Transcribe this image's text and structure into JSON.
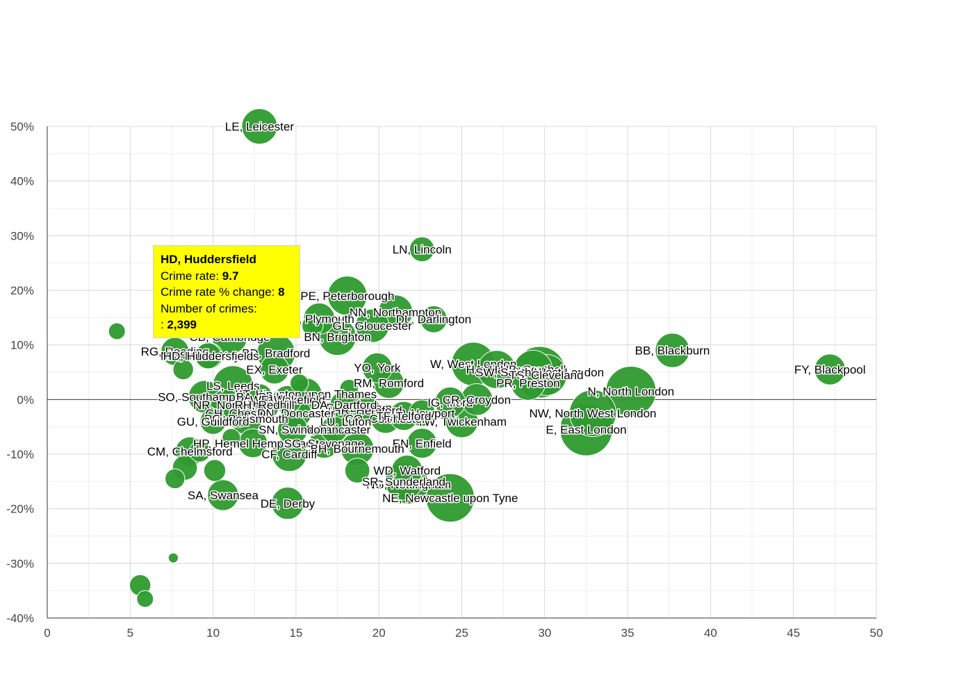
{
  "colors": {
    "bubble": "#2e9a2e",
    "bubble_stroke": "#ffffff",
    "grid": "#d8d8d8",
    "minor_grid": "#eeeeee",
    "axis": "#333333",
    "zero_line": "#333333",
    "tooltip_bg": "#ffff00"
  },
  "tooltip": {
    "title": "HD, Huddersfield",
    "rate_label": "Crime rate: ",
    "rate_value": "9.7",
    "change_label": "Crime rate % change: ",
    "change_value": "8",
    "count_label": "Number of crimes:",
    "count_prefix": ": ",
    "count_value": "2,399"
  },
  "chart_data": {
    "type": "scatter",
    "subtype": "bubble",
    "xlim": [
      0,
      50
    ],
    "ylim": [
      -40,
      50
    ],
    "x_ticks": [
      "0",
      "5",
      "10",
      "15",
      "20",
      "25",
      "30",
      "35",
      "40",
      "45",
      "50"
    ],
    "y_ticks": [
      "50%",
      "40%",
      "30%",
      "20%",
      "10%",
      "0%",
      "-10%",
      "-20%",
      "-30%",
      "-40%"
    ],
    "grid": true,
    "points": [
      {
        "name": "LE, Leicester",
        "x": 12.8,
        "y": 50,
        "size": 4500
      },
      {
        "name": "LN, Lincoln",
        "x": 22.6,
        "y": 27.5,
        "size": 2200
      },
      {
        "name": "PE, Peterborough",
        "x": 18.1,
        "y": 19,
        "size": 5500
      },
      {
        "name": "NN, Northampton",
        "x": 21.0,
        "y": 16,
        "size": 4200
      },
      {
        "name": "DL, Darlington",
        "x": 23.3,
        "y": 14.7,
        "size": 2600
      },
      {
        "name": "PL, Plymouth",
        "x": 16.4,
        "y": 14.8,
        "size": 3500
      },
      {
        "name": "GL, Gloucester",
        "x": 19.6,
        "y": 13.5,
        "size": 4000
      },
      {
        "name": "BN, Brighton",
        "x": 17.5,
        "y": 11.5,
        "size": 5000
      },
      {
        "name": "CB, Cambridge",
        "x": 11.0,
        "y": 11.5,
        "size": 4500
      },
      {
        "name": "RG, Reading",
        "x": 7.7,
        "y": 8.8,
        "size": 2800
      },
      {
        "name": "BD, Bradford",
        "x": 13.8,
        "y": 8.5,
        "size": 5200
      },
      {
        "name": "MK, Milton Keynes",
        "x": 9.8,
        "y": 8.0,
        "size": 2400
      },
      {
        "name": "HD, Huddersfield",
        "x": 9.7,
        "y": 8,
        "size": 2399
      },
      {
        "name": "EX, Exeter",
        "x": 13.7,
        "y": 5.5,
        "size": 3000
      },
      {
        "name": "YO, York",
        "x": 19.9,
        "y": 5.8,
        "size": 3200
      },
      {
        "name": "W, West London",
        "x": 25.7,
        "y": 6.5,
        "size": 6800
      },
      {
        "name": "HA, Harrow",
        "x": 27.1,
        "y": 5.5,
        "size": 5200
      },
      {
        "name": "UB, Southall",
        "x": 29.3,
        "y": 5.5,
        "size": 5300
      },
      {
        "name": "SW, South West London",
        "x": 29.7,
        "y": 5.0,
        "size": 9500
      },
      {
        "name": "TS, Cleveland",
        "x": 30.1,
        "y": 4.5,
        "size": 6000
      },
      {
        "name": "PR, Preston",
        "x": 29.0,
        "y": 3.0,
        "size": 4200
      },
      {
        "name": "RM, Romford",
        "x": 20.6,
        "y": 3.0,
        "size": 3300
      },
      {
        "name": "LS, Leeds",
        "x": 11.2,
        "y": 2.5,
        "size": 5800
      },
      {
        "name": "KT, Kingston upon Thames",
        "x": 15.6,
        "y": 1.0,
        "size": 3600
      },
      {
        "name": "SO, Southampton",
        "x": 9.5,
        "y": 0.5,
        "size": 3800
      },
      {
        "name": "BA, Bath",
        "x": 12.8,
        "y": 0.5,
        "size": 2400
      },
      {
        "name": "WF, Wakefield",
        "x": 14.5,
        "y": 0,
        "size": 2800
      },
      {
        "name": "IG, Ilford",
        "x": 24.3,
        "y": -0.5,
        "size": 3300
      },
      {
        "name": "CR, Croydon",
        "x": 25.9,
        "y": 0,
        "size": 3600
      },
      {
        "name": "BB, Blackburn",
        "x": 37.7,
        "y": 9,
        "size": 4200
      },
      {
        "name": "FY, Blackpool",
        "x": 47.2,
        "y": 5.5,
        "size": 3400
      },
      {
        "name": "N, North London",
        "x": 35.2,
        "y": 1.5,
        "size": 9000
      },
      {
        "name": "NW, North West London",
        "x": 32.9,
        "y": -2.5,
        "size": 7800
      },
      {
        "name": "E, East London",
        "x": 32.5,
        "y": -5.5,
        "size": 9800
      },
      {
        "name": "TW, Twickenham",
        "x": 25.0,
        "y": -4.0,
        "size": 3800
      },
      {
        "name": "NP, Newport",
        "x": 22.6,
        "y": -2.5,
        "size": 2500
      },
      {
        "name": "DH, Durham",
        "x": 18.8,
        "y": -1.5,
        "size": 2800
      },
      {
        "name": "HR, Hereford",
        "x": 19.3,
        "y": -2.0,
        "size": 2600
      },
      {
        "name": "NR, Norwich",
        "x": 10.8,
        "y": -1.0,
        "size": 3500
      },
      {
        "name": "RH, Redhill",
        "x": 13.1,
        "y": -1.0,
        "size": 3200
      },
      {
        "name": "DA, Dartford",
        "x": 17.9,
        "y": -1.0,
        "size": 2800
      },
      {
        "name": "CH, Chester",
        "x": 11.5,
        "y": -2.5,
        "size": 3000
      },
      {
        "name": "DN, Doncaster",
        "x": 15.0,
        "y": -2.5,
        "size": 3300
      },
      {
        "name": "CO, Colchester",
        "x": 20.4,
        "y": -3.5,
        "size": 3100
      },
      {
        "name": "TF, Telford",
        "x": 21.5,
        "y": -3.0,
        "size": 3000
      },
      {
        "name": "PO, Portsmouth",
        "x": 12.0,
        "y": -3.5,
        "size": 3600
      },
      {
        "name": "GU, Guildford",
        "x": 10.0,
        "y": -4.0,
        "size": 2400
      },
      {
        "name": "LU, Luton",
        "x": 18.0,
        "y": -4.0,
        "size": 2900
      },
      {
        "name": "LA, Lancaster",
        "x": 17.3,
        "y": -5.5,
        "size": 2500
      },
      {
        "name": "SN, Swindon",
        "x": 14.8,
        "y": -5.5,
        "size": 3200
      },
      {
        "name": "HP, Hemel Hempstead",
        "x": 12.4,
        "y": -8.0,
        "size": 3000
      },
      {
        "name": "SG, Stevenage",
        "x": 16.7,
        "y": -8.0,
        "size": 3200
      },
      {
        "name": "EN, Enfield",
        "x": 22.6,
        "y": -8.0,
        "size": 3200
      },
      {
        "name": "BH, Bournemouth",
        "x": 18.7,
        "y": -9.0,
        "size": 3900
      },
      {
        "name": "CF, Cardiff",
        "x": 14.6,
        "y": -10.0,
        "size": 4300
      },
      {
        "name": "CM, Chelmsford",
        "x": 8.6,
        "y": -9.5,
        "size": 3000
      },
      {
        "name": "WD, Watford",
        "x": 21.7,
        "y": -13.0,
        "size": 3400
      },
      {
        "name": "NG, Nottingham",
        "x": 21.8,
        "y": -15.5,
        "size": 5600
      },
      {
        "name": "SR, Sunderland",
        "x": 21.5,
        "y": -15.0,
        "size": 5000
      },
      {
        "name": "NE, Newcastle upon Tyne",
        "x": 24.3,
        "y": -18.0,
        "size": 8400
      },
      {
        "name": "SA, Swansea",
        "x": 10.6,
        "y": -17.5,
        "size": 3400
      },
      {
        "name": "DE, Derby",
        "x": 14.5,
        "y": -19.0,
        "size": 3700
      },
      {
        "name": "",
        "x": 4.2,
        "y": 12.5,
        "size": 1000
      },
      {
        "name": "",
        "x": 8.2,
        "y": 5.5,
        "size": 1500
      },
      {
        "name": "",
        "x": 9.2,
        "y": -9.5,
        "size": 1600
      },
      {
        "name": "",
        "x": 10.1,
        "y": -13.0,
        "size": 1700
      },
      {
        "name": "",
        "x": 8.3,
        "y": -12.5,
        "size": 2200
      },
      {
        "name": "",
        "x": 7.7,
        "y": -14.5,
        "size": 1400
      },
      {
        "name": "",
        "x": 18.7,
        "y": -13.0,
        "size": 2200
      },
      {
        "name": "",
        "x": 7.6,
        "y": -29.0,
        "size": 350
      },
      {
        "name": "",
        "x": 5.6,
        "y": -34.0,
        "size": 1600
      },
      {
        "name": "",
        "x": 5.9,
        "y": -36.5,
        "size": 1000
      },
      {
        "name": "",
        "x": 11.1,
        "y": -7.0,
        "size": 1200
      },
      {
        "name": "",
        "x": 15.2,
        "y": 3.0,
        "size": 1200
      },
      {
        "name": "",
        "x": 18.2,
        "y": 2.0,
        "size": 1200
      },
      {
        "name": "",
        "x": 16.0,
        "y": 13.5,
        "size": 1600
      }
    ]
  }
}
